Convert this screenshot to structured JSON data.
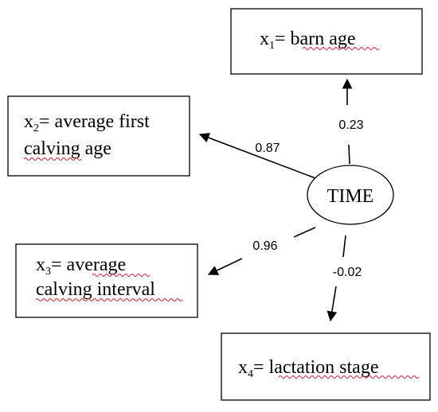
{
  "central_node": {
    "label": "TIME"
  },
  "variables": [
    {
      "id": "x1",
      "var": "x",
      "sub": "1",
      "eq": "= ",
      "lines": [
        "barn age"
      ]
    },
    {
      "id": "x2",
      "var": "x",
      "sub": "2",
      "eq": "= ",
      "lines": [
        "average first",
        "calving age"
      ]
    },
    {
      "id": "x3",
      "var": "x",
      "sub": "3",
      "eq": "= ",
      "lines": [
        "average",
        "calving interval"
      ]
    },
    {
      "id": "x4",
      "var": "x",
      "sub": "4",
      "eq": "= ",
      "lines": [
        "lactation stage"
      ]
    }
  ],
  "paths": [
    {
      "to": "x1",
      "coefficient": "0.23"
    },
    {
      "to": "x2",
      "coefficient": "0.87"
    },
    {
      "to": "x3",
      "coefficient": "0.96"
    },
    {
      "to": "x4",
      "coefficient": "-0.02"
    }
  ],
  "colors": {
    "line": "#000000",
    "spellcheck_underline": "#e0203a"
  }
}
